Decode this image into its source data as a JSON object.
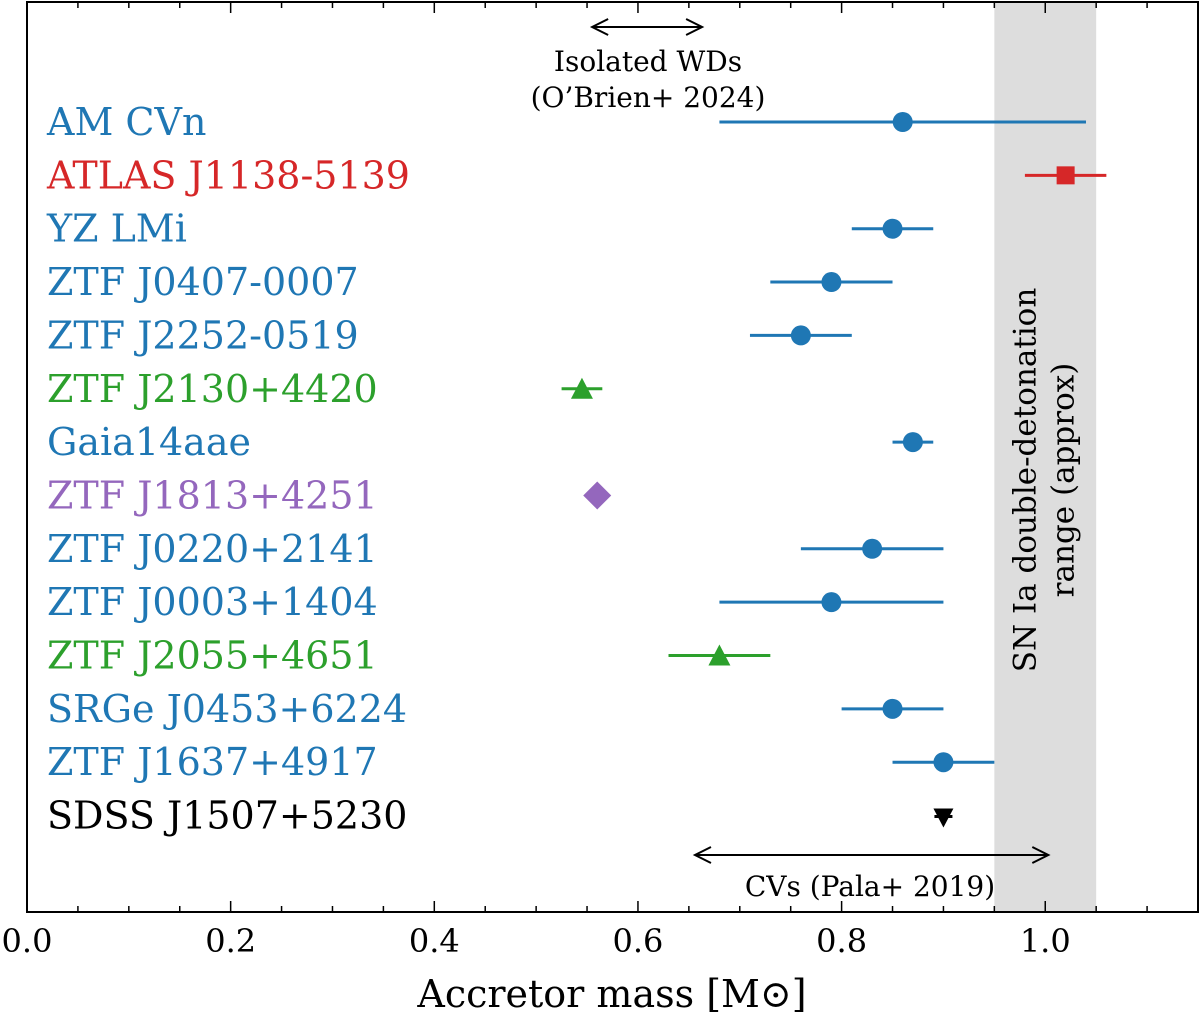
{
  "chart_data": {
    "type": "scatter",
    "title": "",
    "xlabel": "Accretor mass [M⊙]",
    "ylabel": "",
    "xlim": [
      0.0,
      1.15
    ],
    "xticks": [
      "0.0",
      "0.2",
      "0.4",
      "0.6",
      "0.8",
      "1.0"
    ],
    "grid": false,
    "colors": {
      "blue": "#1f77b4",
      "red": "#d62728",
      "green": "#2ca02c",
      "purple": "#9467bd",
      "black": "#000000",
      "band": "#dddddd"
    },
    "points": [
      {
        "name": "AM CVn",
        "mass": 0.86,
        "lo": 0.68,
        "hi": 1.04,
        "color": "#1f77b4",
        "marker": "circle"
      },
      {
        "name": "ATLAS J1138-5139",
        "mass": 1.02,
        "lo": 0.98,
        "hi": 1.06,
        "color": "#d62728",
        "marker": "square"
      },
      {
        "name": "YZ LMi",
        "mass": 0.85,
        "lo": 0.81,
        "hi": 0.89,
        "color": "#1f77b4",
        "marker": "circle"
      },
      {
        "name": "ZTF J0407-0007",
        "mass": 0.79,
        "lo": 0.73,
        "hi": 0.85,
        "color": "#1f77b4",
        "marker": "circle"
      },
      {
        "name": "ZTF J2252-0519",
        "mass": 0.76,
        "lo": 0.71,
        "hi": 0.81,
        "color": "#1f77b4",
        "marker": "circle"
      },
      {
        "name": "ZTF J2130+4420",
        "mass": 0.545,
        "lo": 0.525,
        "hi": 0.565,
        "color": "#2ca02c",
        "marker": "triangle-up"
      },
      {
        "name": "Gaia14aae",
        "mass": 0.87,
        "lo": 0.85,
        "hi": 0.89,
        "color": "#1f77b4",
        "marker": "circle"
      },
      {
        "name": "ZTF J1813+4251",
        "mass": 0.56,
        "lo": 0.55,
        "hi": 0.57,
        "color": "#9467bd",
        "marker": "diamond"
      },
      {
        "name": "ZTF J0220+2141",
        "mass": 0.83,
        "lo": 0.76,
        "hi": 0.9,
        "color": "#1f77b4",
        "marker": "circle"
      },
      {
        "name": "ZTF J0003+1404",
        "mass": 0.79,
        "lo": 0.68,
        "hi": 0.9,
        "color": "#1f77b4",
        "marker": "circle"
      },
      {
        "name": "ZTF J2055+4651",
        "mass": 0.68,
        "lo": 0.63,
        "hi": 0.73,
        "color": "#2ca02c",
        "marker": "triangle-up"
      },
      {
        "name": "SRGe J0453+6224",
        "mass": 0.85,
        "lo": 0.8,
        "hi": 0.9,
        "color": "#1f77b4",
        "marker": "circle"
      },
      {
        "name": "ZTF J1637+4917",
        "mass": 0.9,
        "lo": 0.85,
        "hi": 0.95,
        "color": "#1f77b4",
        "marker": "circle"
      },
      {
        "name": "SDSS J1507+5230",
        "mass": 0.9,
        "lo": null,
        "hi": null,
        "color": "#000000",
        "marker": "triangle-down"
      }
    ],
    "band": {
      "from": 0.95,
      "to": 1.05,
      "label_line1": "SN Ia double-detonation",
      "label_line2": "range (approx)"
    },
    "annotations": [
      {
        "from": 0.555,
        "to": 0.663,
        "line1": "Isolated WDs",
        "line2": "(O’Brien+ 2024)",
        "position": "top"
      },
      {
        "from": 0.656,
        "to": 1.003,
        "line1": "CVs (Pala+ 2019)",
        "position": "bottom"
      }
    ]
  }
}
